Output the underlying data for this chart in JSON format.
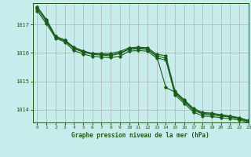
{
  "title": "Graphe pression niveau de la mer (hPa)",
  "bg_color": "#c8ecec",
  "grid_color": "#b0b0b0",
  "line_color": "#1a5c1a",
  "xlim": [
    -0.5,
    23
  ],
  "ylim": [
    1013.55,
    1017.75
  ],
  "xticks": [
    0,
    1,
    2,
    3,
    4,
    5,
    6,
    7,
    8,
    9,
    10,
    11,
    12,
    13,
    14,
    15,
    16,
    17,
    18,
    19,
    20,
    21,
    22,
    23
  ],
  "yticks": [
    1014,
    1015,
    1016,
    1017
  ],
  "series": [
    [
      1017.62,
      1017.18,
      1016.58,
      1016.45,
      1016.18,
      1016.05,
      1015.98,
      1015.98,
      1015.98,
      1016.05,
      1016.18,
      1016.2,
      1016.18,
      1015.95,
      1015.9,
      1014.65,
      1014.35,
      1014.05,
      1013.9,
      1013.88,
      1013.82,
      1013.78,
      1013.72,
      1013.62
    ],
    [
      1017.55,
      1017.1,
      1016.55,
      1016.42,
      1016.15,
      1016.02,
      1015.95,
      1015.92,
      1015.9,
      1015.98,
      1016.12,
      1016.15,
      1016.12,
      1015.88,
      1015.82,
      1014.58,
      1014.28,
      1013.98,
      1013.85,
      1013.82,
      1013.78,
      1013.74,
      1013.68,
      1013.58
    ],
    [
      1017.48,
      1017.02,
      1016.52,
      1016.38,
      1016.08,
      1015.96,
      1015.88,
      1015.85,
      1015.83,
      1015.88,
      1016.06,
      1016.08,
      1016.06,
      1015.82,
      1015.75,
      1014.52,
      1014.22,
      1013.92,
      1013.78,
      1013.76,
      1013.72,
      1013.68,
      1013.64,
      1013.54
    ],
    [
      1017.62,
      1017.15,
      1016.58,
      1016.45,
      1016.2,
      1016.07,
      1015.98,
      1015.95,
      1015.93,
      1016.0,
      1016.14,
      1016.17,
      1016.14,
      1015.9,
      1014.78,
      1014.62,
      1014.32,
      1014.02,
      1013.87,
      1013.85,
      1013.8,
      1013.76,
      1013.7,
      1013.6
    ]
  ]
}
